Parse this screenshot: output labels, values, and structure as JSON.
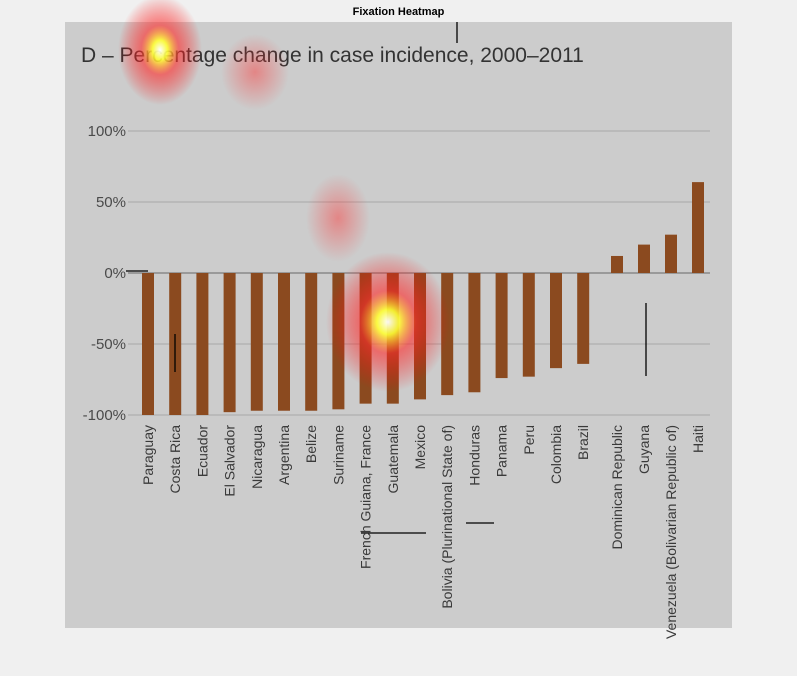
{
  "figure_title": "Fixation Heatmap",
  "chart_data": {
    "type": "bar",
    "title": "D –  Percentage change in case incidence, 2000–2011",
    "xlabel": "",
    "ylabel": "",
    "ylim": [
      -100,
      100
    ],
    "yticks": [
      100,
      50,
      0,
      -50,
      -100
    ],
    "ytick_labels": [
      "100%",
      "50%",
      "0%",
      "-50%",
      "-100%"
    ],
    "grid": true,
    "bar_color": "#8b4a1f",
    "categories": [
      "Paraguay",
      "Costa Rica",
      "Ecuador",
      "El Salvador",
      "Nicaragua",
      "Argentina",
      "Belize",
      "Suriname",
      "French Guiana, France",
      "Guatemala",
      "Mexico",
      "Bolivia (Plurinational State of)",
      "Honduras",
      "Panama",
      "Peru",
      "Colombia",
      "Brazil",
      "Dominican Republic",
      "Guyana",
      "Venezuela (Bolivarian Republic of)",
      "Haiti"
    ],
    "values": [
      -100,
      -100,
      -100,
      -98,
      -97,
      -97,
      -97,
      -96,
      -92,
      -92,
      -89,
      -86,
      -84,
      -74,
      -73,
      -67,
      -64,
      12,
      20,
      27,
      64
    ]
  },
  "heatmap_overlay": {
    "colors": [
      "#ff0000",
      "#ffff00",
      "#ffffff"
    ]
  }
}
